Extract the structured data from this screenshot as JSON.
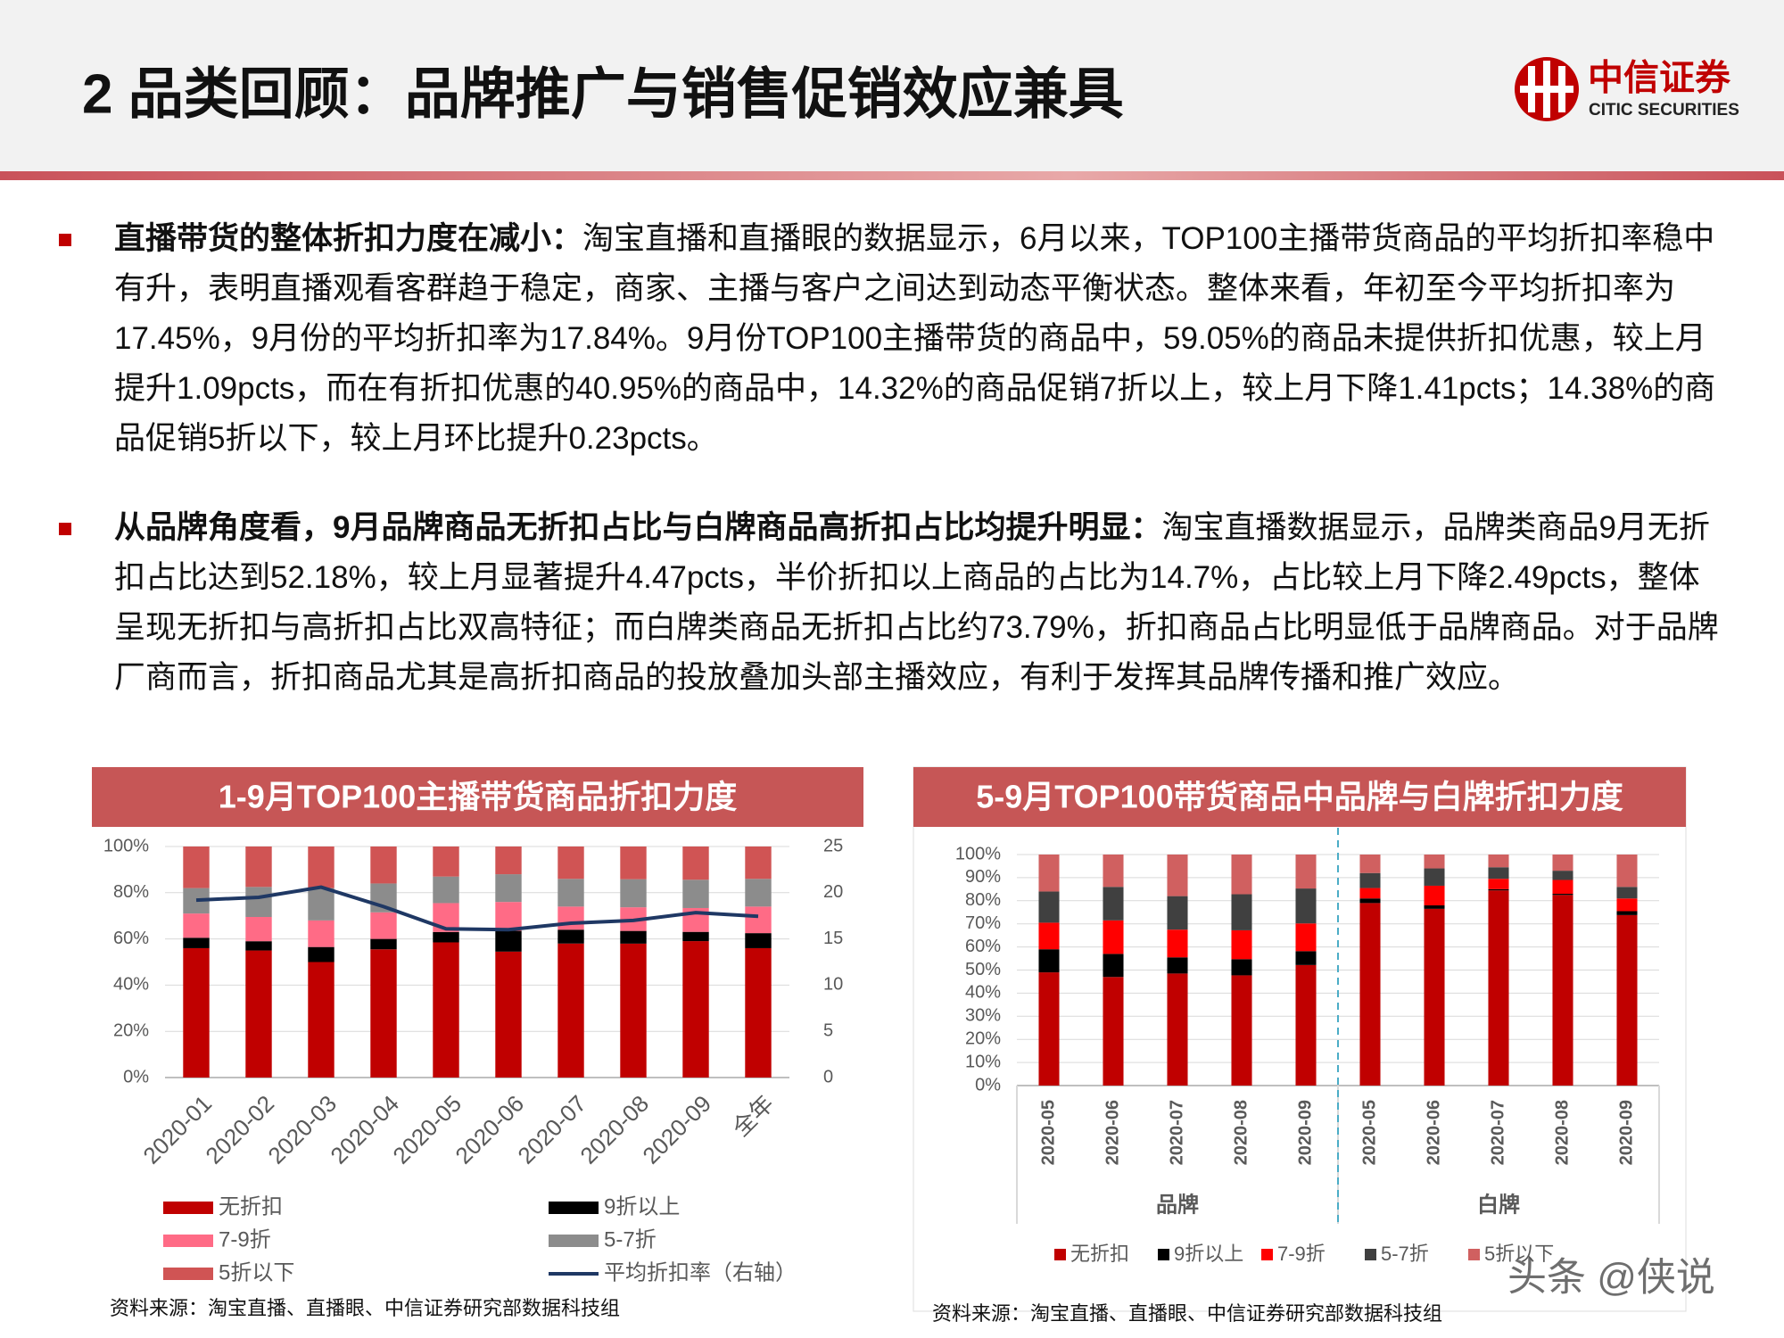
{
  "header": {
    "title": "2 品类回顾：品牌推广与销售促销效应兼具",
    "logo_cn": "中信证券",
    "logo_en": "CITIC SECURITIES"
  },
  "bullets": [
    {
      "lead": "直播带货的整体折扣力度在减小：",
      "text": "淘宝直播和直播眼的数据显示，6月以来，TOP100主播带货商品的平均折扣率稳中有升，表明直播观看客群趋于稳定，商家、主播与客户之间达到动态平衡状态。整体来看，年初至今平均折扣率为17.45%，9月份的平均折扣率为17.84%。9月份TOP100主播带货的商品中，59.05%的商品未提供折扣优惠，较上月提升1.09pcts，而在有折扣优惠的40.95%的商品中，14.32%的商品促销7折以上，较上月下降1.41pcts；14.38%的商品促销5折以下，较上月环比提升0.23pcts。"
    },
    {
      "lead": "从品牌角度看，9月品牌商品无折扣占比与白牌商品高折扣占比均提升明显：",
      "text": "淘宝直播数据显示，品牌类商品9月无折扣占比达到52.18%，较上月显著提升4.47pcts，半价折扣以上商品的占比为14.7%，占比较上月下降2.49pcts，整体呈现无折扣与高折扣占比双高特征；而白牌类商品无折扣占比约73.79%，折扣商品占比明显低于品牌商品。对于品牌厂商而言，折扣商品尤其是高折扣商品的投放叠加头部主播效应，有利于发挥其品牌传播和推广效应。"
    }
  ],
  "chart_data": [
    {
      "type": "bar",
      "stacked": true,
      "title": "1-9月TOP100主播带货商品折扣力度",
      "source": "资料来源：淘宝直播、直播眼、中信证券研究部数据科技组",
      "categories": [
        "2020-01",
        "2020-02",
        "2020-03",
        "2020-04",
        "2020-05",
        "2020-06",
        "2020-07",
        "2020-08",
        "2020-09",
        "全年"
      ],
      "series": [
        {
          "name": "无折扣",
          "color": "#c00000",
          "values": [
            56,
            55,
            50,
            55.5,
            58.5,
            54.5,
            58,
            57.96,
            59.05,
            56
          ]
        },
        {
          "name": "9折以上",
          "color": "#000000",
          "values": [
            4.5,
            4,
            6.5,
            4.5,
            4.5,
            9,
            6,
            5.5,
            4,
            6.5
          ]
        },
        {
          "name": "7-9折",
          "color": "#ff6b86",
          "values": [
            10.5,
            10.5,
            11.5,
            11.5,
            12.5,
            12.5,
            10,
            10.23,
            10.32,
            11.5
          ]
        },
        {
          "name": "5-7折",
          "color": "#8c8c8c",
          "values": [
            11,
            13,
            14,
            12.5,
            11.5,
            12,
            12,
            12.16,
            12.25,
            12
          ]
        },
        {
          "name": "5折以下",
          "color": "#d05454",
          "values": [
            18,
            17.5,
            18,
            16,
            13,
            12,
            14,
            14.15,
            14.38,
            14
          ]
        },
        {
          "name": "平均折扣率（右轴）",
          "color": "#1f3864",
          "type": "line",
          "axis": "y2",
          "values": [
            19.2,
            19.5,
            20.6,
            18.5,
            16.1,
            16,
            16.7,
            17,
            17.84,
            17.45
          ]
        }
      ],
      "ylim": [
        0,
        100
      ],
      "yticks": [
        {
          "value": 0,
          "label": "0%"
        },
        {
          "value": 20,
          "label": "20%"
        },
        {
          "value": 40,
          "label": "40%"
        },
        {
          "value": 60,
          "label": "60%"
        },
        {
          "value": 80,
          "label": "80%"
        },
        {
          "value": 100,
          "label": "100%"
        }
      ],
      "y2lim": [
        0,
        25
      ],
      "y2ticks": [
        0,
        5,
        10,
        15,
        20,
        25
      ],
      "grid": true
    },
    {
      "type": "bar",
      "stacked": true,
      "title": "5-9月TOP100带货商品中品牌与白牌折扣力度",
      "source": "资料来源：淘宝直播、直播眼、中信证券研究部数据科技组",
      "groups": [
        "品牌",
        "白牌"
      ],
      "categories": [
        "2020-05",
        "2020-06",
        "2020-07",
        "2020-08",
        "2020-09",
        "2020-05",
        "2020-06",
        "2020-07",
        "2020-08",
        "2020-09"
      ],
      "series": [
        {
          "name": "无折扣",
          "color": "#c00000",
          "values": [
            49,
            47,
            48.5,
            47.71,
            52.18,
            79,
            76.5,
            84.5,
            82.5,
            73.79
          ]
        },
        {
          "name": "9折以上",
          "color": "#000000",
          "values": [
            10,
            10,
            7,
            7,
            6,
            2,
            1.5,
            0.5,
            0.5,
            1.7
          ]
        },
        {
          "name": "7-9折",
          "color": "#ff0000",
          "values": [
            11.5,
            14.5,
            12,
            12.5,
            12,
            4.5,
            8.5,
            4.5,
            6,
            5.5
          ]
        },
        {
          "name": "5-7折",
          "color": "#404040",
          "values": [
            13.5,
            14.5,
            14.5,
            15.6,
            15.12,
            6.5,
            7.5,
            5,
            4,
            5
          ]
        },
        {
          "name": "5折以下",
          "color": "#d06060",
          "values": [
            16,
            14,
            18,
            17.19,
            14.7,
            8,
            6,
            5.5,
            7,
            14.01
          ]
        }
      ],
      "ylim": [
        0,
        100
      ],
      "yticks": [
        {
          "value": 0,
          "label": "0%"
        },
        {
          "value": 10,
          "label": "10%"
        },
        {
          "value": 20,
          "label": "20%"
        },
        {
          "value": 30,
          "label": "30%"
        },
        {
          "value": 40,
          "label": "40%"
        },
        {
          "value": 50,
          "label": "50%"
        },
        {
          "value": 60,
          "label": "60%"
        },
        {
          "value": 70,
          "label": "70%"
        },
        {
          "value": 80,
          "label": "80%"
        },
        {
          "value": 90,
          "label": "90%"
        },
        {
          "value": 100,
          "label": "100%"
        }
      ],
      "grid": true
    }
  ],
  "watermark": "头条 @侠说"
}
